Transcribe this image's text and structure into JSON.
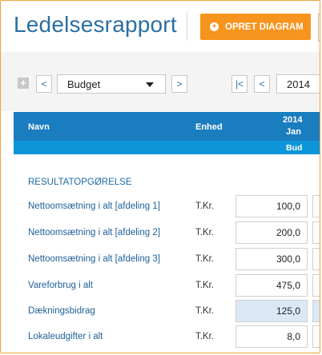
{
  "header": {
    "title": "Ledelsesrapport",
    "create_button": "OPRET DIAGRAM",
    "create_icon": "plus-circle-icon"
  },
  "toolbar": {
    "expand_symbol": "+",
    "prev_symbol": "<",
    "next_symbol": ">",
    "first_symbol": "|<",
    "budget_value": "Budget",
    "year_value": "2014"
  },
  "table": {
    "columns": {
      "name": "Navn",
      "unit": "Enhed",
      "year": "2014",
      "month": "Jan",
      "budget": "Bud"
    },
    "section": "RESULTATOPGØRELSE",
    "rows": [
      {
        "label": "Nettoomsætning i alt [afdeling 1]",
        "unit": "T.Kr.",
        "value": "100,0"
      },
      {
        "label": "Nettoomsætning i alt [afdeling 2]",
        "unit": "T.Kr.",
        "value": "200,0"
      },
      {
        "label": "Nettoomsætning i alt [afdeling 3]",
        "unit": "T.Kr.",
        "value": "300,0"
      },
      {
        "label": "Vareforbrug i alt",
        "unit": "T.Kr.",
        "value": "475,0"
      },
      {
        "label": "Dækningsbidrag",
        "unit": "T.Kr.",
        "value": "125,0",
        "highlight": true
      },
      {
        "label": "Lokaleudgifter i alt",
        "unit": "T.Kr.",
        "value": "8,0"
      }
    ]
  },
  "colors": {
    "accent": "#f7941d",
    "header_blue": "#1a7dc0",
    "sub_blue": "#0d95d9",
    "highlight": "#dbe8f6"
  }
}
